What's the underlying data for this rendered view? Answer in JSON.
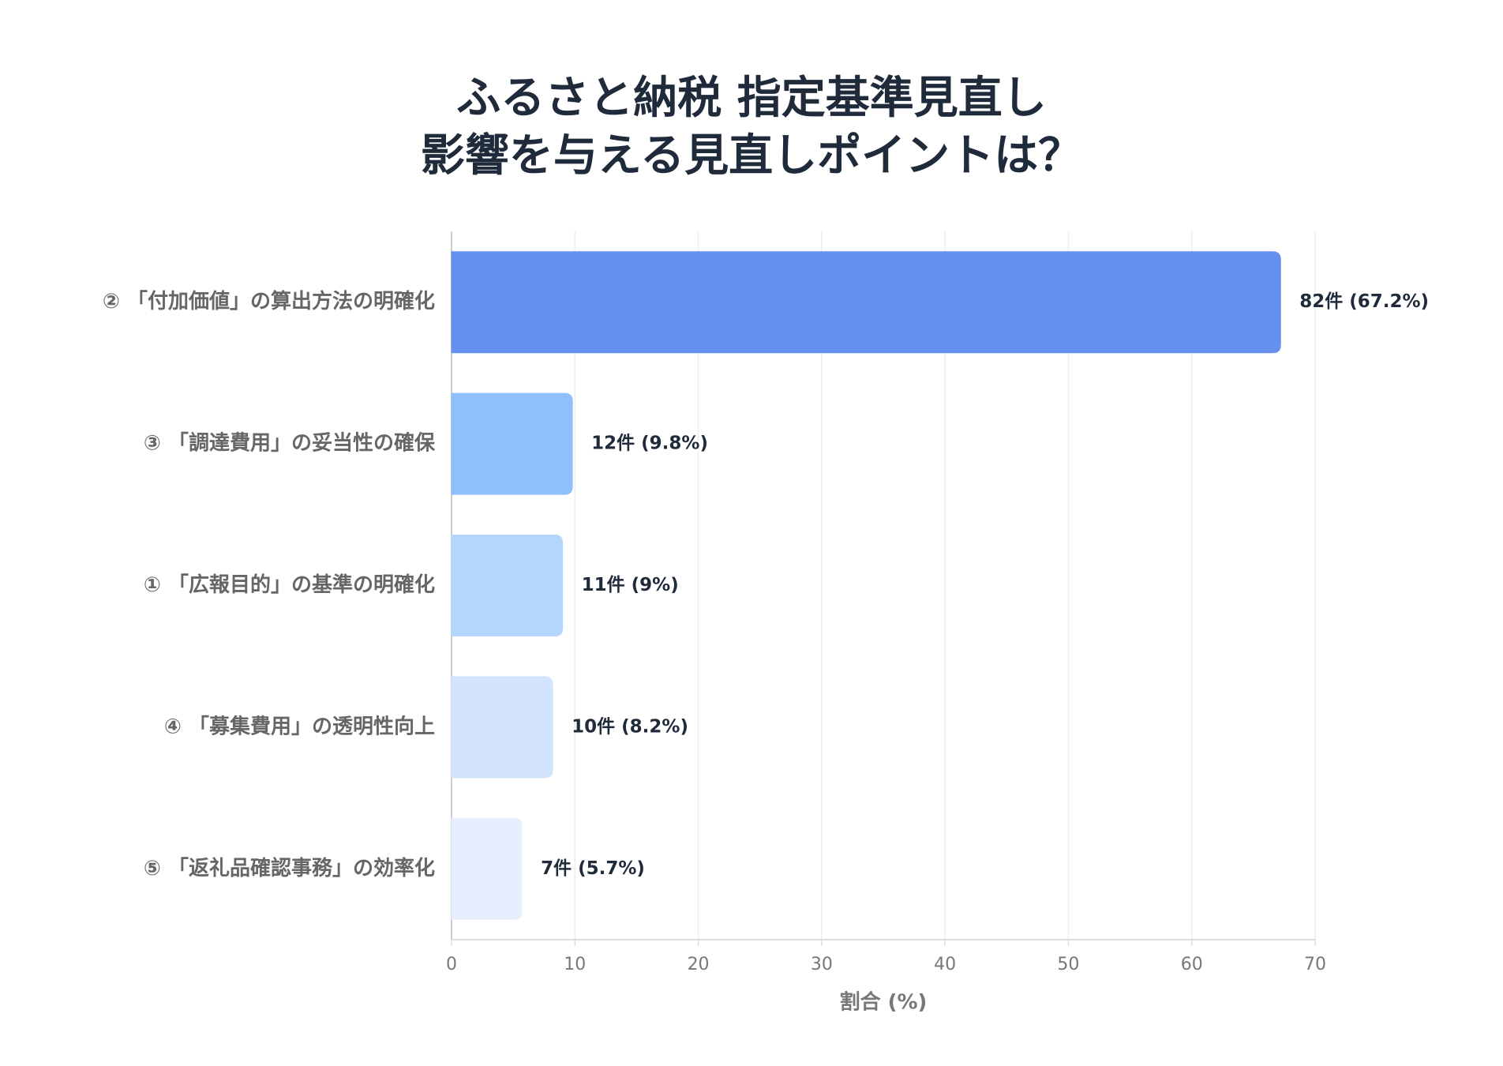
{
  "chart_data": {
    "type": "bar",
    "orientation": "horizontal",
    "title": [
      "ふるさと納税 指定基準見直し",
      "影響を与える見直しポイントは？"
    ],
    "categories": [
      "② 「付加価値」の算出方法の明確化",
      "③ 「調達費用」の妥当性の確保",
      "① 「広報目的」の基準の明確化",
      "④ 「募集費用」の透明性向上",
      "⑤ 「返礼品確認事務」の効率化"
    ],
    "values": [
      67.2,
      9.8,
      9,
      8.2,
      5.7
    ],
    "value_labels": [
      "82件 (67.2%)",
      "12件 (9.8%)",
      "11件 (9%)",
      "10件 (8.2%)",
      "7件 (5.7%)"
    ],
    "colors": [
      "#6690ee",
      "#90c0fb",
      "#b3d6fd",
      "#d3e5fc",
      "#e6effd"
    ],
    "xlabel": "割合 (%)",
    "xlim": [
      0,
      70
    ],
    "xticks": [
      0,
      10,
      20,
      30,
      40,
      50,
      60,
      70
    ],
    "grid": true
  }
}
